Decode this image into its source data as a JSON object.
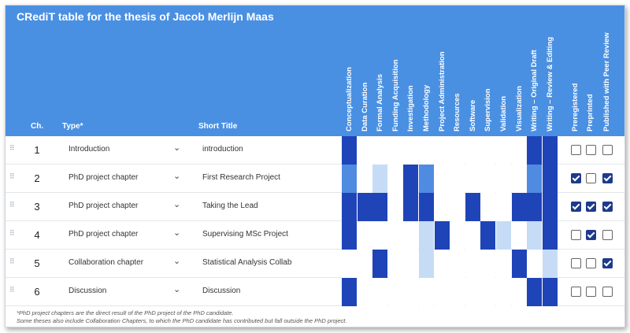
{
  "title": "CRediT table for the thesis of Jacob Merlijn Maas",
  "columns": {
    "ch": "Ch.",
    "type": "Type*",
    "short_title": "Short Title",
    "roles": [
      "Conceptualization",
      "Data Curation",
      "Formal Analysis",
      "Funding Acquisition",
      "Investigation",
      "Methodology",
      "Project Administration",
      "Resources",
      "Software",
      "Supervision",
      "Validation",
      "Visualization",
      "Writing – Original Draft",
      "Writing – Review & Editing"
    ],
    "flags": [
      "Preregistered",
      "Preprinted",
      "Published with Peer Review"
    ]
  },
  "colors": {
    "header": "#4a90e2",
    "level0": "#ffffff",
    "level1": "#c6dcf6",
    "level2": "#4f8be0",
    "level3": "#1f44b8"
  },
  "rows": [
    {
      "ch": "1",
      "type": "Introduction",
      "short_title": "introduction",
      "levels": [
        3,
        0,
        0,
        0,
        0,
        0,
        0,
        0,
        0,
        0,
        0,
        0,
        3,
        3
      ],
      "flags": [
        false,
        false,
        false
      ]
    },
    {
      "ch": "2",
      "type": "PhD project chapter",
      "short_title": "First Research Project",
      "levels": [
        2,
        0,
        1,
        0,
        3,
        2,
        0,
        0,
        0,
        0,
        0,
        0,
        2,
        3
      ],
      "flags": [
        true,
        false,
        true
      ]
    },
    {
      "ch": "3",
      "type": "PhD project chapter",
      "short_title": "Taking the Lead",
      "levels": [
        3,
        3,
        3,
        0,
        3,
        3,
        0,
        0,
        3,
        0,
        0,
        3,
        3,
        3
      ],
      "flags": [
        true,
        true,
        true
      ]
    },
    {
      "ch": "4",
      "type": "PhD project chapter",
      "short_title": "Supervising MSc Project",
      "levels": [
        3,
        0,
        0,
        0,
        0,
        1,
        3,
        0,
        0,
        3,
        1,
        0,
        1,
        3
      ],
      "flags": [
        false,
        true,
        false
      ]
    },
    {
      "ch": "5",
      "type": "Collaboration chapter",
      "short_title": "Statistical Analysis Collab",
      "levels": [
        0,
        0,
        3,
        0,
        0,
        1,
        0,
        0,
        0,
        0,
        0,
        3,
        0,
        1
      ],
      "flags": [
        false,
        false,
        true
      ]
    },
    {
      "ch": "6",
      "type": "Discussion",
      "short_title": "Discussion",
      "levels": [
        3,
        0,
        0,
        0,
        0,
        0,
        0,
        0,
        0,
        0,
        0,
        0,
        3,
        3
      ],
      "flags": [
        false,
        false,
        false
      ]
    }
  ],
  "footnotes": [
    "*PhD project chapters are the direct result of the PhD project of the PhD candidate.",
    "Some theses also include Collaboration Chapters, to which the PhD candidate has contributed but fall outside the PhD project."
  ]
}
